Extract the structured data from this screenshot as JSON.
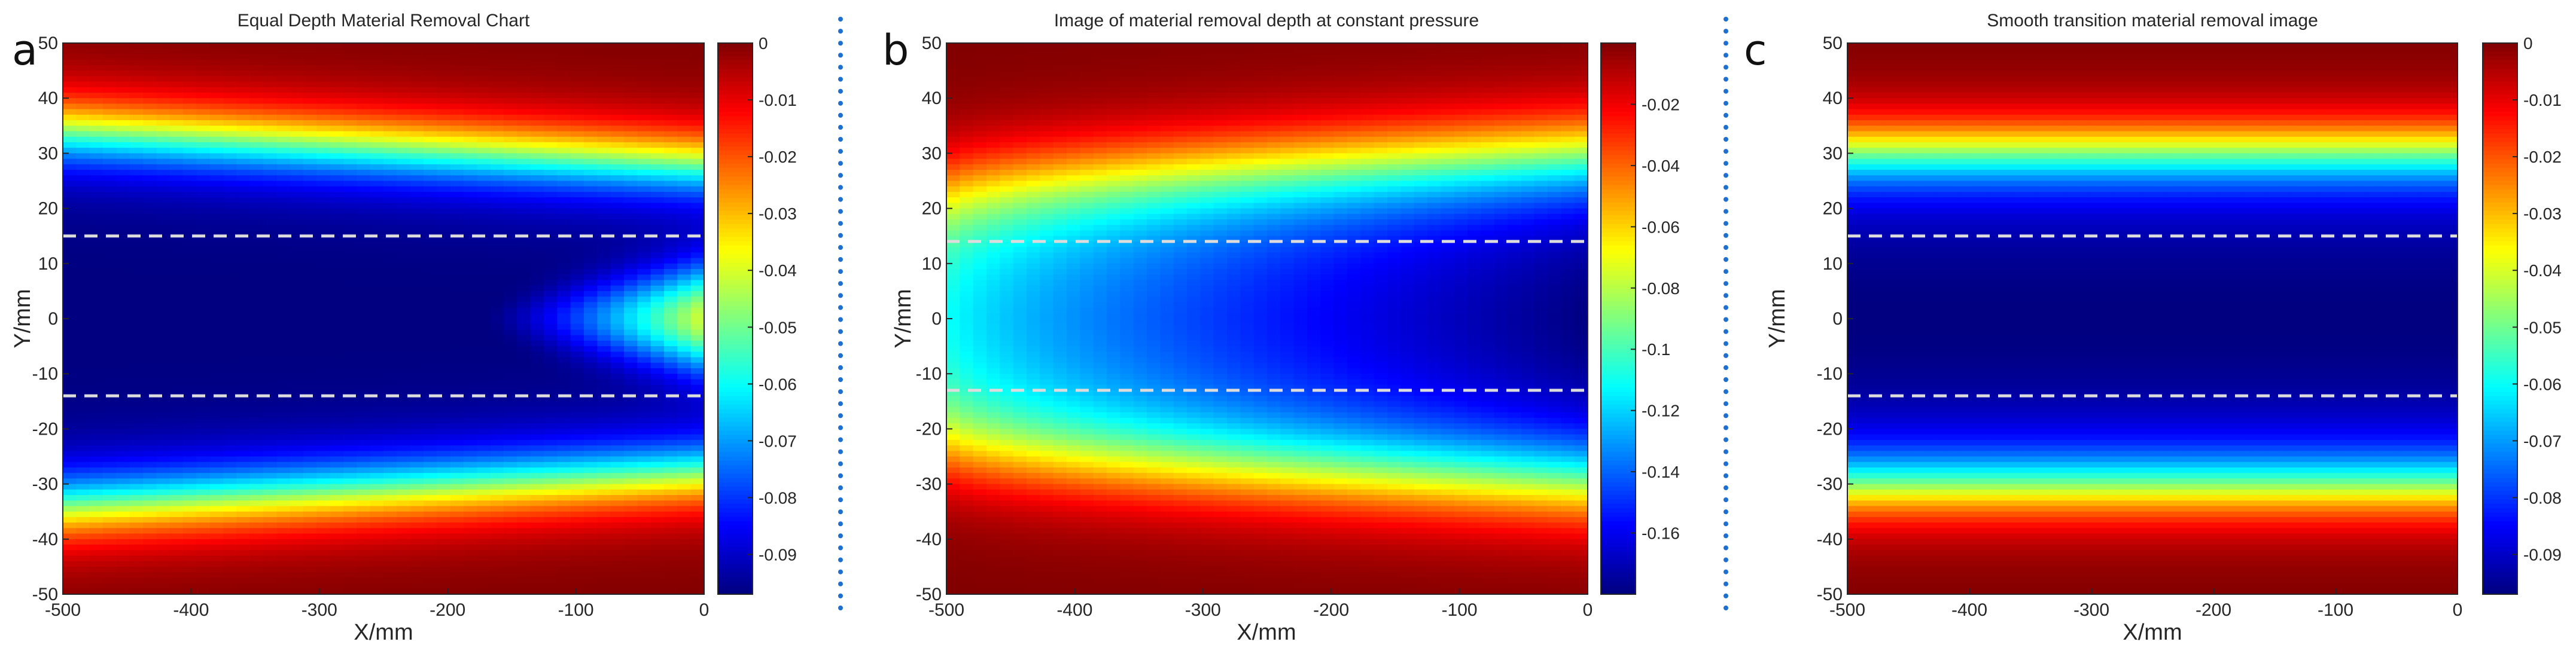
{
  "colormap": "jet",
  "colors": {
    "axis": "#262626",
    "dashed_line": "#dcdcdc",
    "separator": "#1f6fd1"
  },
  "chart_data": [
    {
      "type": "heatmap",
      "panel_label": "a",
      "title": "Equal Depth Material Removal Chart",
      "xlabel": "X/mm",
      "ylabel": "Y/mm",
      "xlim": [
        -500,
        0
      ],
      "ylim": [
        -50,
        50
      ],
      "xticks": [
        "-500",
        "-400",
        "-300",
        "-200",
        "-100",
        "0"
      ],
      "yticks": [
        "50",
        "40",
        "30",
        "20",
        "10",
        "0",
        "-10",
        "-20",
        "-30",
        "-40",
        "-50"
      ],
      "colorbar": {
        "range": [
          -0.097,
          0.0
        ],
        "ticks": [
          "0",
          "-0.01",
          "-0.02",
          "-0.03",
          "-0.04",
          "-0.05",
          "-0.06",
          "-0.07",
          "-0.08",
          "-0.09"
        ],
        "tick_values": [
          0,
          -0.01,
          -0.02,
          -0.03,
          -0.04,
          -0.05,
          -0.06,
          -0.07,
          -0.08,
          -0.09
        ]
      },
      "field": {
        "model": "equal_depth",
        "band_half_width_at_x0": 28,
        "band_half_width_at_xmin": 34,
        "edge_sigma": 4,
        "min_depth": -0.097,
        "center_bump_depth": -0.04,
        "center_bump_length": 170,
        "center_bump_half_height": 6
      },
      "dashed_lines_y": [
        15,
        -14
      ]
    },
    {
      "type": "heatmap",
      "panel_label": "b",
      "title": "Image of material removal depth at constant pressure",
      "xlabel": "X/mm",
      "ylabel": "Y/mm",
      "xlim": [
        -500,
        0
      ],
      "ylim": [
        -50,
        50
      ],
      "xticks": [
        "-500",
        "-400",
        "-300",
        "-200",
        "-100",
        "0"
      ],
      "yticks": [
        "50",
        "40",
        "30",
        "20",
        "10",
        "0",
        "-10",
        "-20",
        "-30",
        "-40",
        "-50"
      ],
      "colorbar": {
        "range": [
          -0.18,
          0.0
        ],
        "ticks": [
          "-0.02",
          "-0.04",
          "-0.06",
          "-0.08",
          "-0.1",
          "-0.12",
          "-0.14",
          "-0.16"
        ],
        "tick_values": [
          -0.02,
          -0.04,
          -0.06,
          -0.08,
          -0.1,
          -0.12,
          -0.14,
          -0.16
        ]
      },
      "field": {
        "model": "constant_pressure",
        "band_half_width_at_x0": 31,
        "band_half_width_at_xmin": 24,
        "edge_sigma": 5,
        "min_depth_at_x0": -0.18,
        "min_depth_at_xmin": -0.11,
        "profile_width": 55
      },
      "dashed_lines_y": [
        14,
        -13
      ]
    },
    {
      "type": "heatmap",
      "panel_label": "c",
      "title": "Smooth transition material removal image",
      "xlabel": "X/mm",
      "ylabel": "Y/mm",
      "xlim": [
        -500,
        0
      ],
      "ylim": [
        -50,
        50
      ],
      "xticks": [
        "-500",
        "-400",
        "-300",
        "-200",
        "-100",
        "0"
      ],
      "yticks": [
        "50",
        "40",
        "30",
        "20",
        "10",
        "0",
        "-10",
        "-20",
        "-30",
        "-40",
        "-50"
      ],
      "colorbar": {
        "range": [
          -0.097,
          0.0
        ],
        "ticks": [
          "0",
          "-0.01",
          "-0.02",
          "-0.03",
          "-0.04",
          "-0.05",
          "-0.06",
          "-0.07",
          "-0.08",
          "-0.09"
        ],
        "tick_values": [
          0,
          -0.01,
          -0.02,
          -0.03,
          -0.04,
          -0.05,
          -0.06,
          -0.07,
          -0.08,
          -0.09
        ]
      },
      "field": {
        "model": "smooth_transition",
        "band_half_width": 31,
        "edge_sigma": 4,
        "min_depth": -0.097
      },
      "dashed_lines_y": [
        15,
        -14
      ]
    }
  ]
}
